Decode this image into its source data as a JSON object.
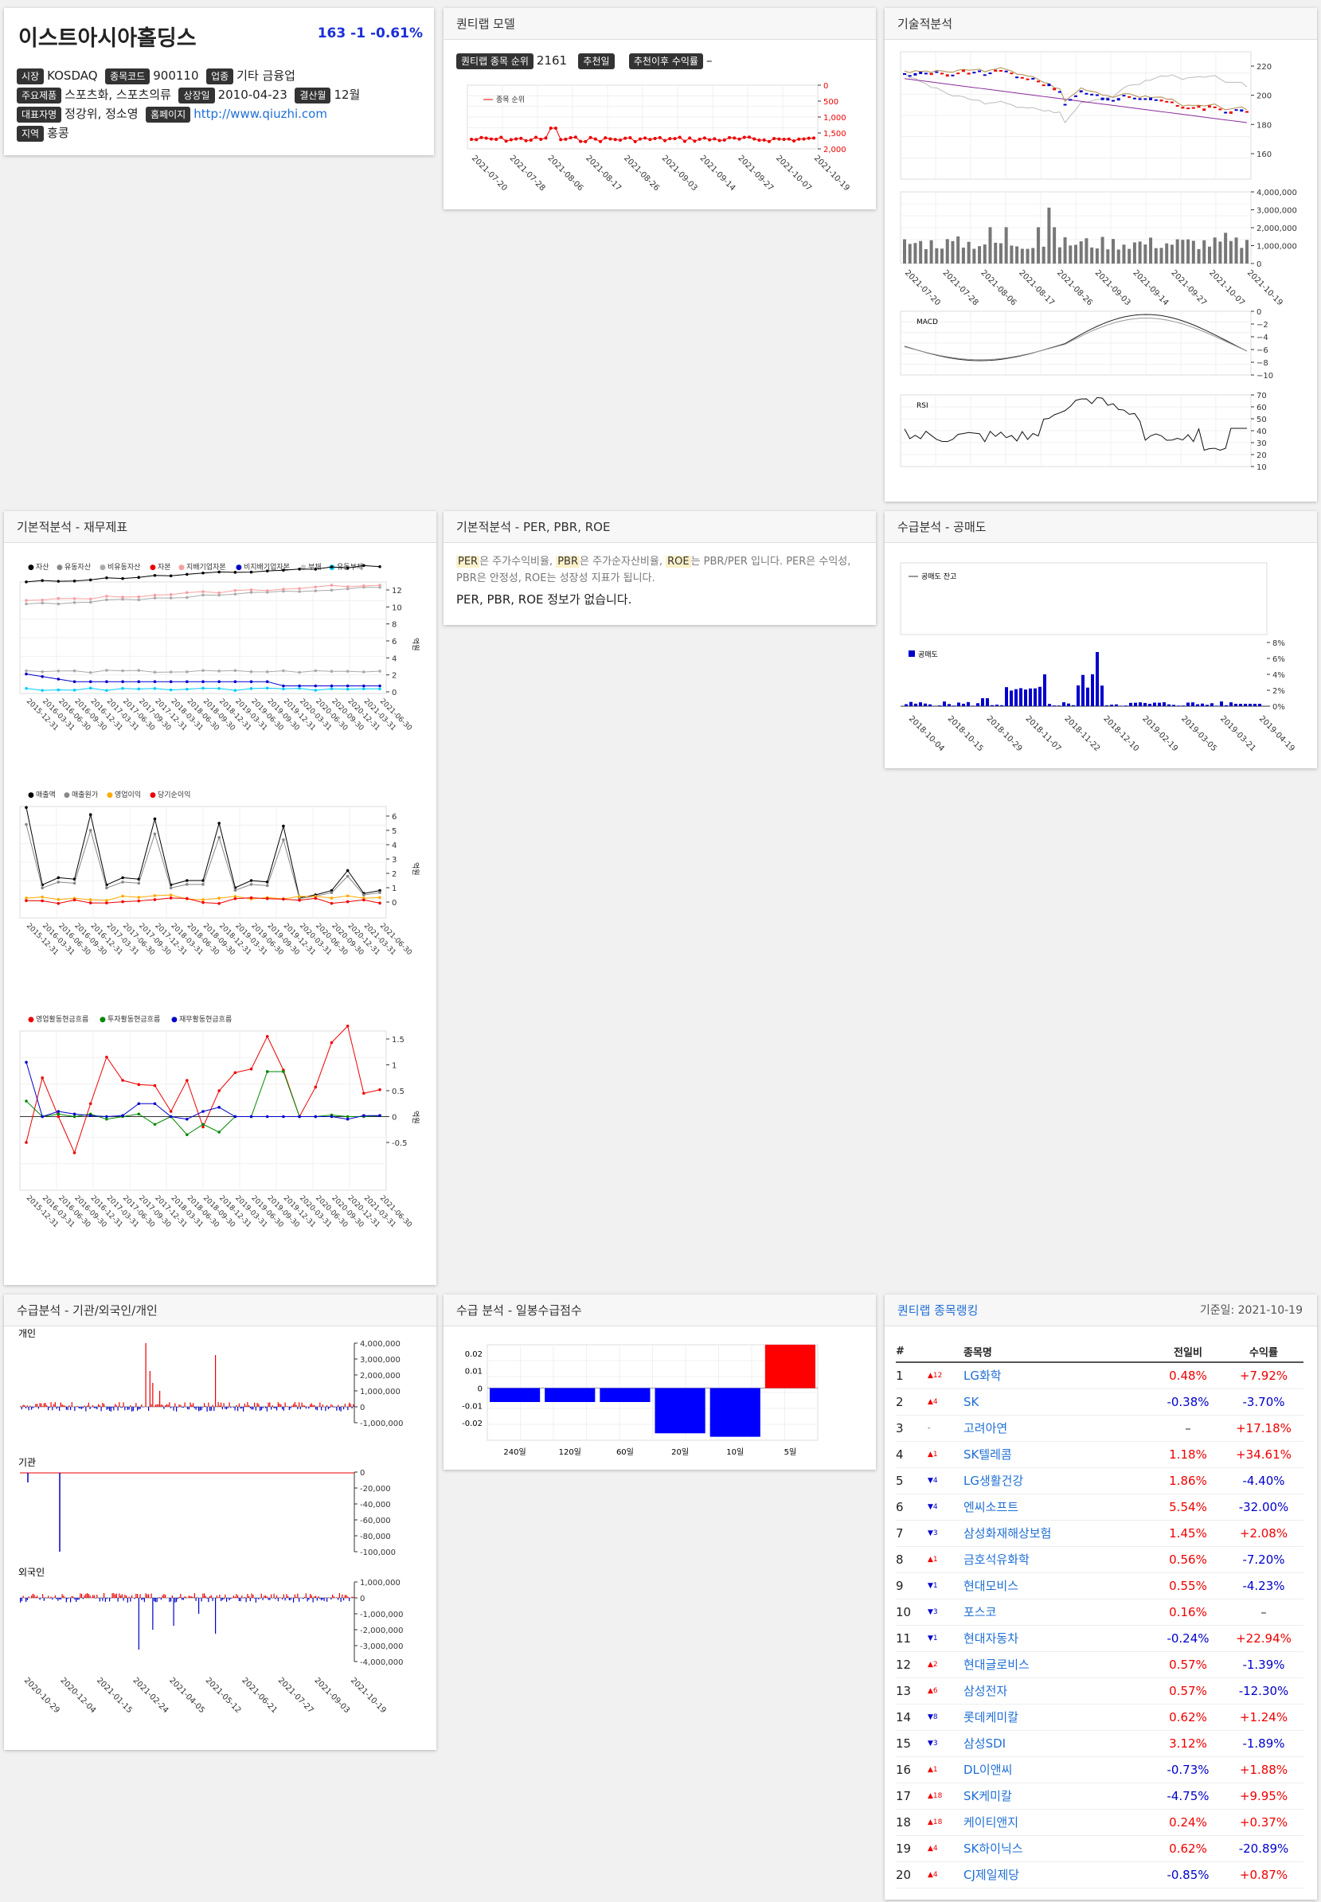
{
  "company": {
    "name": "이스트아시아홀딩스",
    "price": "163",
    "change": "-1",
    "change_pct": "-0.61%",
    "market_label": "시장",
    "market": "KOSDAQ",
    "code_label": "종목코드",
    "code": "900110",
    "industry_label": "업종",
    "industry": "기타 금융업",
    "product_label": "주요제품",
    "product": "스포츠화, 스포츠의류",
    "listed_label": "상장일",
    "listed": "2010-04-23",
    "fiscal_label": "결산월",
    "fiscal": "12월",
    "ceo_label": "대표자명",
    "ceo": "정강위, 정소영",
    "home_label": "홈페이지",
    "home": "http://www.qiuzhi.com",
    "region_label": "지역",
    "region": "홍콩"
  },
  "quant": {
    "title": "퀀티랩 모델",
    "rank_label": "퀀티랩 종목 순위",
    "rank": "2161",
    "rec_label": "추천일",
    "ret_label": "추천이후 수익률",
    "ret": "–",
    "legend": "종목 순위",
    "yticks": [
      "0",
      "500",
      "1,000",
      "1,500",
      "2,000"
    ],
    "dates": [
      "2021-07-20",
      "2021-07-28",
      "2021-08-06",
      "2021-08-17",
      "2021-08-26",
      "2021-09-03",
      "2021-09-14",
      "2021-09-27",
      "2021-10-07",
      "2021-10-19"
    ]
  },
  "tech": {
    "title": "기술적분석",
    "price_ticks": [
      "220",
      "200",
      "180",
      "160"
    ],
    "vol_ticks": [
      "4,000,000",
      "3,000,000",
      "2,000,000",
      "1,000,000",
      "0"
    ],
    "macd_label": "MACD",
    "macd_ticks": [
      "0",
      "−2",
      "−4",
      "−6",
      "−8",
      "−10"
    ],
    "rsi_label": "RSI",
    "rsi_ticks": [
      "70",
      "60",
      "50",
      "40",
      "30",
      "20",
      "10"
    ],
    "dates": [
      "2021-07-20",
      "2021-07-28",
      "2021-08-06",
      "2021-08-17",
      "2021-08-26",
      "2021-09-03",
      "2021-09-14",
      "2021-09-27",
      "2021-10-07",
      "2021-10-19"
    ]
  },
  "fund": {
    "title": "기본적분석 - 재무제표",
    "legend1": [
      "자산",
      "유동자산",
      "비유동자산",
      "자본",
      "지배기업자본",
      "비지배기업자본",
      "부채",
      "유동부채"
    ],
    "legend1_colors": [
      "#000",
      "#888",
      "#aaa",
      "#e00",
      "#f5a0a0",
      "#00c",
      "#ccc",
      "#0cf"
    ],
    "ticks1": [
      "12",
      "10",
      "8",
      "6",
      "4",
      "2",
      "0"
    ],
    "legend2": [
      "매출액",
      "매출원가",
      "영업이익",
      "당기순이익"
    ],
    "legend2_colors": [
      "#000",
      "#888",
      "#fa0",
      "#e00"
    ],
    "ticks2": [
      "6",
      "5",
      "4",
      "3",
      "2",
      "1",
      "0"
    ],
    "legend3": [
      "영업활동현금흐름",
      "투자활동현금흐름",
      "재무활동현금흐름"
    ],
    "legend3_colors": [
      "#e00",
      "#080",
      "#00c"
    ],
    "ticks3": [
      "1.5",
      "1",
      "0.5",
      "0",
      "-0.5"
    ],
    "unit": "억원",
    "dates": [
      "2015-12-31",
      "2016-03-31",
      "2016-06-30",
      "2016-09-30",
      "2016-12-31",
      "2017-03-31",
      "2017-06-30",
      "2017-09-30",
      "2017-12-31",
      "2018-03-31",
      "2018-06-30",
      "2018-09-30",
      "2018-12-31",
      "2019-03-31",
      "2019-06-30",
      "2019-09-30",
      "2019-12-31",
      "2020-03-31",
      "2020-06-30",
      "2020-09-30",
      "2020-12-31",
      "2021-03-31",
      "2021-06-30"
    ]
  },
  "per": {
    "title": "기본적분석 - PER, PBR, ROE",
    "t1": "PER",
    "t2": "은 주가수익비율, ",
    "t3": "PBR",
    "t4": "은 주가순자산비율, ",
    "t5": "ROE",
    "t6": "는 PBR/PER 입니다. PER은 수익성, PBR은 안정성, ROE는 성장성 지표가 됩니다.",
    "empty": "PER, PBR, ROE 정보가 없습니다."
  },
  "short": {
    "title": "수급분석 - 공매도",
    "legend1": "공매도 잔고",
    "legend2": "공매도",
    "ticks": [
      "8%",
      "6%",
      "4%",
      "2%",
      "0%"
    ],
    "dates": [
      "2018-10-04",
      "2018-10-15",
      "2018-10-29",
      "2018-11-07",
      "2018-11-22",
      "2018-12-10",
      "2019-02-19",
      "2019-03-05",
      "2019-03-21",
      "2019-04-19"
    ]
  },
  "flow": {
    "title": "수급분석 - 기관/외국인/개인",
    "p_label": "개인",
    "i_label": "기관",
    "f_label": "외국인",
    "p_ticks": [
      "4,000,000",
      "3,000,000",
      "2,000,000",
      "1,000,000",
      "0",
      "-1,000,000"
    ],
    "i_ticks": [
      "0",
      "-20,000",
      "-40,000",
      "-60,000",
      "-80,000",
      "-100,000"
    ],
    "f_ticks": [
      "1,000,000",
      "0",
      "-1,000,000",
      "-2,000,000",
      "-3,000,000",
      "-4,000,000"
    ],
    "dates": [
      "2020-10-29",
      "2020-12-04",
      "2021-01-15",
      "2021-02-24",
      "2021-04-05",
      "2021-05-12",
      "2021-06-21",
      "2021-07-27",
      "2021-09-03",
      "2021-10-19"
    ]
  },
  "score": {
    "title": "수급 분석 - 일봉수급점수",
    "chart_data": {
      "type": "bar",
      "categories": [
        "240일",
        "120일",
        "60일",
        "20일",
        "10일",
        "5일"
      ],
      "values": [
        -0.008,
        -0.008,
        -0.008,
        -0.026,
        -0.028,
        0.025
      ],
      "ylim": [
        -0.03,
        0.025
      ]
    },
    "ticks": [
      "0.02",
      "0.01",
      "0",
      "-0.01",
      "-0.02"
    ]
  },
  "ranking": {
    "title": "퀀티랩 종목랭킹",
    "date": "기준일: 2021-10-19",
    "h_no": "#",
    "h_name": "종목명",
    "h_chg": "전일비",
    "h_ret": "수익률",
    "rows": [
      {
        "no": "1",
        "dir": "up",
        "mv": "12",
        "name": "LG화학",
        "chg": "0.48%",
        "ret": "+7.92%"
      },
      {
        "no": "2",
        "dir": "up",
        "mv": "4",
        "name": "SK",
        "chg": "-0.38%",
        "ret": "-3.70%"
      },
      {
        "no": "3",
        "dir": "none",
        "mv": "-",
        "name": "고려아연",
        "chg": "–",
        "ret": "+17.18%"
      },
      {
        "no": "4",
        "dir": "up",
        "mv": "1",
        "name": "SK텔레콤",
        "chg": "1.18%",
        "ret": "+34.61%"
      },
      {
        "no": "5",
        "dir": "down",
        "mv": "4",
        "name": "LG생활건강",
        "chg": "1.86%",
        "ret": "-4.40%"
      },
      {
        "no": "6",
        "dir": "down",
        "mv": "4",
        "name": "엔씨소프트",
        "chg": "5.54%",
        "ret": "-32.00%"
      },
      {
        "no": "7",
        "dir": "down",
        "mv": "3",
        "name": "삼성화재해상보험",
        "chg": "1.45%",
        "ret": "+2.08%"
      },
      {
        "no": "8",
        "dir": "up",
        "mv": "1",
        "name": "금호석유화학",
        "chg": "0.56%",
        "ret": "-7.20%"
      },
      {
        "no": "9",
        "dir": "down",
        "mv": "1",
        "name": "현대모비스",
        "chg": "0.55%",
        "ret": "-4.23%"
      },
      {
        "no": "10",
        "dir": "down",
        "mv": "3",
        "name": "포스코",
        "chg": "0.16%",
        "ret": "–"
      },
      {
        "no": "11",
        "dir": "down",
        "mv": "1",
        "name": "현대자동차",
        "chg": "-0.24%",
        "ret": "+22.94%"
      },
      {
        "no": "12",
        "dir": "up",
        "mv": "2",
        "name": "현대글로비스",
        "chg": "0.57%",
        "ret": "-1.39%"
      },
      {
        "no": "13",
        "dir": "up",
        "mv": "6",
        "name": "삼성전자",
        "chg": "0.57%",
        "ret": "-12.30%"
      },
      {
        "no": "14",
        "dir": "down",
        "mv": "8",
        "name": "롯데케미칼",
        "chg": "0.62%",
        "ret": "+1.24%"
      },
      {
        "no": "15",
        "dir": "down",
        "mv": "3",
        "name": "삼성SDI",
        "chg": "3.12%",
        "ret": "-1.89%"
      },
      {
        "no": "16",
        "dir": "up",
        "mv": "1",
        "name": "DL이앤씨",
        "chg": "-0.73%",
        "ret": "+1.88%"
      },
      {
        "no": "17",
        "dir": "up",
        "mv": "18",
        "name": "SK케미칼",
        "chg": "-4.75%",
        "ret": "+9.95%"
      },
      {
        "no": "18",
        "dir": "up",
        "mv": "18",
        "name": "케이티앤지",
        "chg": "0.24%",
        "ret": "+0.37%"
      },
      {
        "no": "19",
        "dir": "up",
        "mv": "4",
        "name": "SK하이닉스",
        "chg": "0.62%",
        "ret": "-20.89%"
      },
      {
        "no": "20",
        "dir": "up",
        "mv": "4",
        "name": "CJ제일제당",
        "chg": "-0.85%",
        "ret": "+0.87%"
      }
    ]
  }
}
